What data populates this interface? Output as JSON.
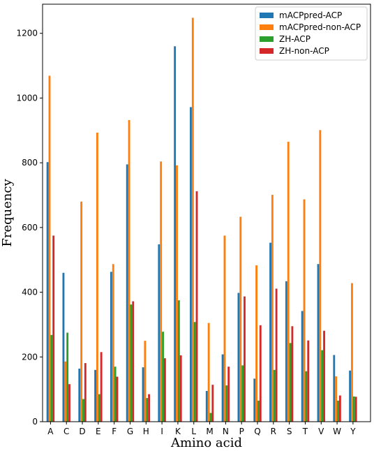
{
  "chart_data": {
    "type": "bar",
    "xlabel": "Amino acid",
    "ylabel": "Frequency",
    "ylim": [
      0,
      1290
    ],
    "yticks": [
      0,
      200,
      400,
      600,
      800,
      1000,
      1200
    ],
    "legend_position": "top-right",
    "categories": [
      "A",
      "C",
      "D",
      "E",
      "F",
      "G",
      "H",
      "I",
      "K",
      "L",
      "M",
      "N",
      "P",
      "Q",
      "R",
      "S",
      "T",
      "V",
      "W",
      "Y"
    ],
    "series": [
      {
        "name": "mACPpred-ACP",
        "color": "#1f77b4",
        "values": [
          802,
          460,
          164,
          160,
          463,
          795,
          168,
          548,
          1160,
          972,
          95,
          208,
          398,
          133,
          553,
          434,
          342,
          487,
          206,
          158
        ]
      },
      {
        "name": "mACPpred-non-ACP",
        "color": "#ff7f0e",
        "values": [
          1069,
          186,
          680,
          893,
          487,
          932,
          250,
          804,
          792,
          1248,
          305,
          575,
          633,
          483,
          701,
          865,
          687,
          901,
          140,
          428
        ]
      },
      {
        "name": "ZH-ACP",
        "color": "#2ca02c",
        "values": [
          268,
          275,
          70,
          85,
          170,
          362,
          73,
          278,
          375,
          308,
          27,
          112,
          174,
          65,
          160,
          243,
          156,
          221,
          65,
          78
        ]
      },
      {
        "name": "ZH-non-ACP",
        "color": "#d62728",
        "values": [
          575,
          116,
          181,
          215,
          139,
          372,
          85,
          196,
          205,
          712,
          114,
          170,
          387,
          298,
          411,
          295,
          251,
          281,
          81,
          77
        ]
      }
    ]
  }
}
